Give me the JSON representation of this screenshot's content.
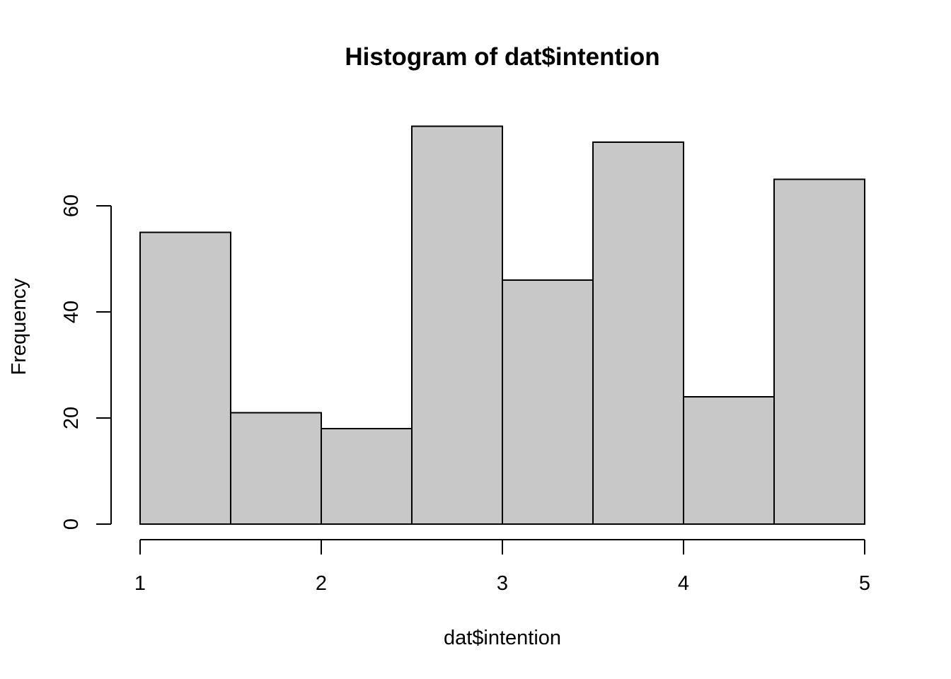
{
  "chart_data": {
    "type": "bar",
    "title": "Histogram of dat$intention",
    "xlabel": "dat$intention",
    "ylabel": "Frequency",
    "bins": [
      {
        "start": 1.0,
        "end": 1.5,
        "count": 55
      },
      {
        "start": 1.5,
        "end": 2.0,
        "count": 21
      },
      {
        "start": 2.0,
        "end": 2.5,
        "count": 18
      },
      {
        "start": 2.5,
        "end": 3.0,
        "count": 75
      },
      {
        "start": 3.0,
        "end": 3.5,
        "count": 46
      },
      {
        "start": 3.5,
        "end": 4.0,
        "count": 72
      },
      {
        "start": 4.0,
        "end": 4.5,
        "count": 24
      },
      {
        "start": 4.5,
        "end": 5.0,
        "count": 65
      }
    ],
    "x_ticks": [
      "1",
      "2",
      "3",
      "4",
      "5"
    ],
    "y_ticks": [
      "0",
      "20",
      "40",
      "60"
    ],
    "xlim": [
      1,
      5
    ],
    "ylim": [
      0,
      75
    ],
    "grid": false,
    "bar_color": "#c8c8c8",
    "border_color": "#000000"
  }
}
